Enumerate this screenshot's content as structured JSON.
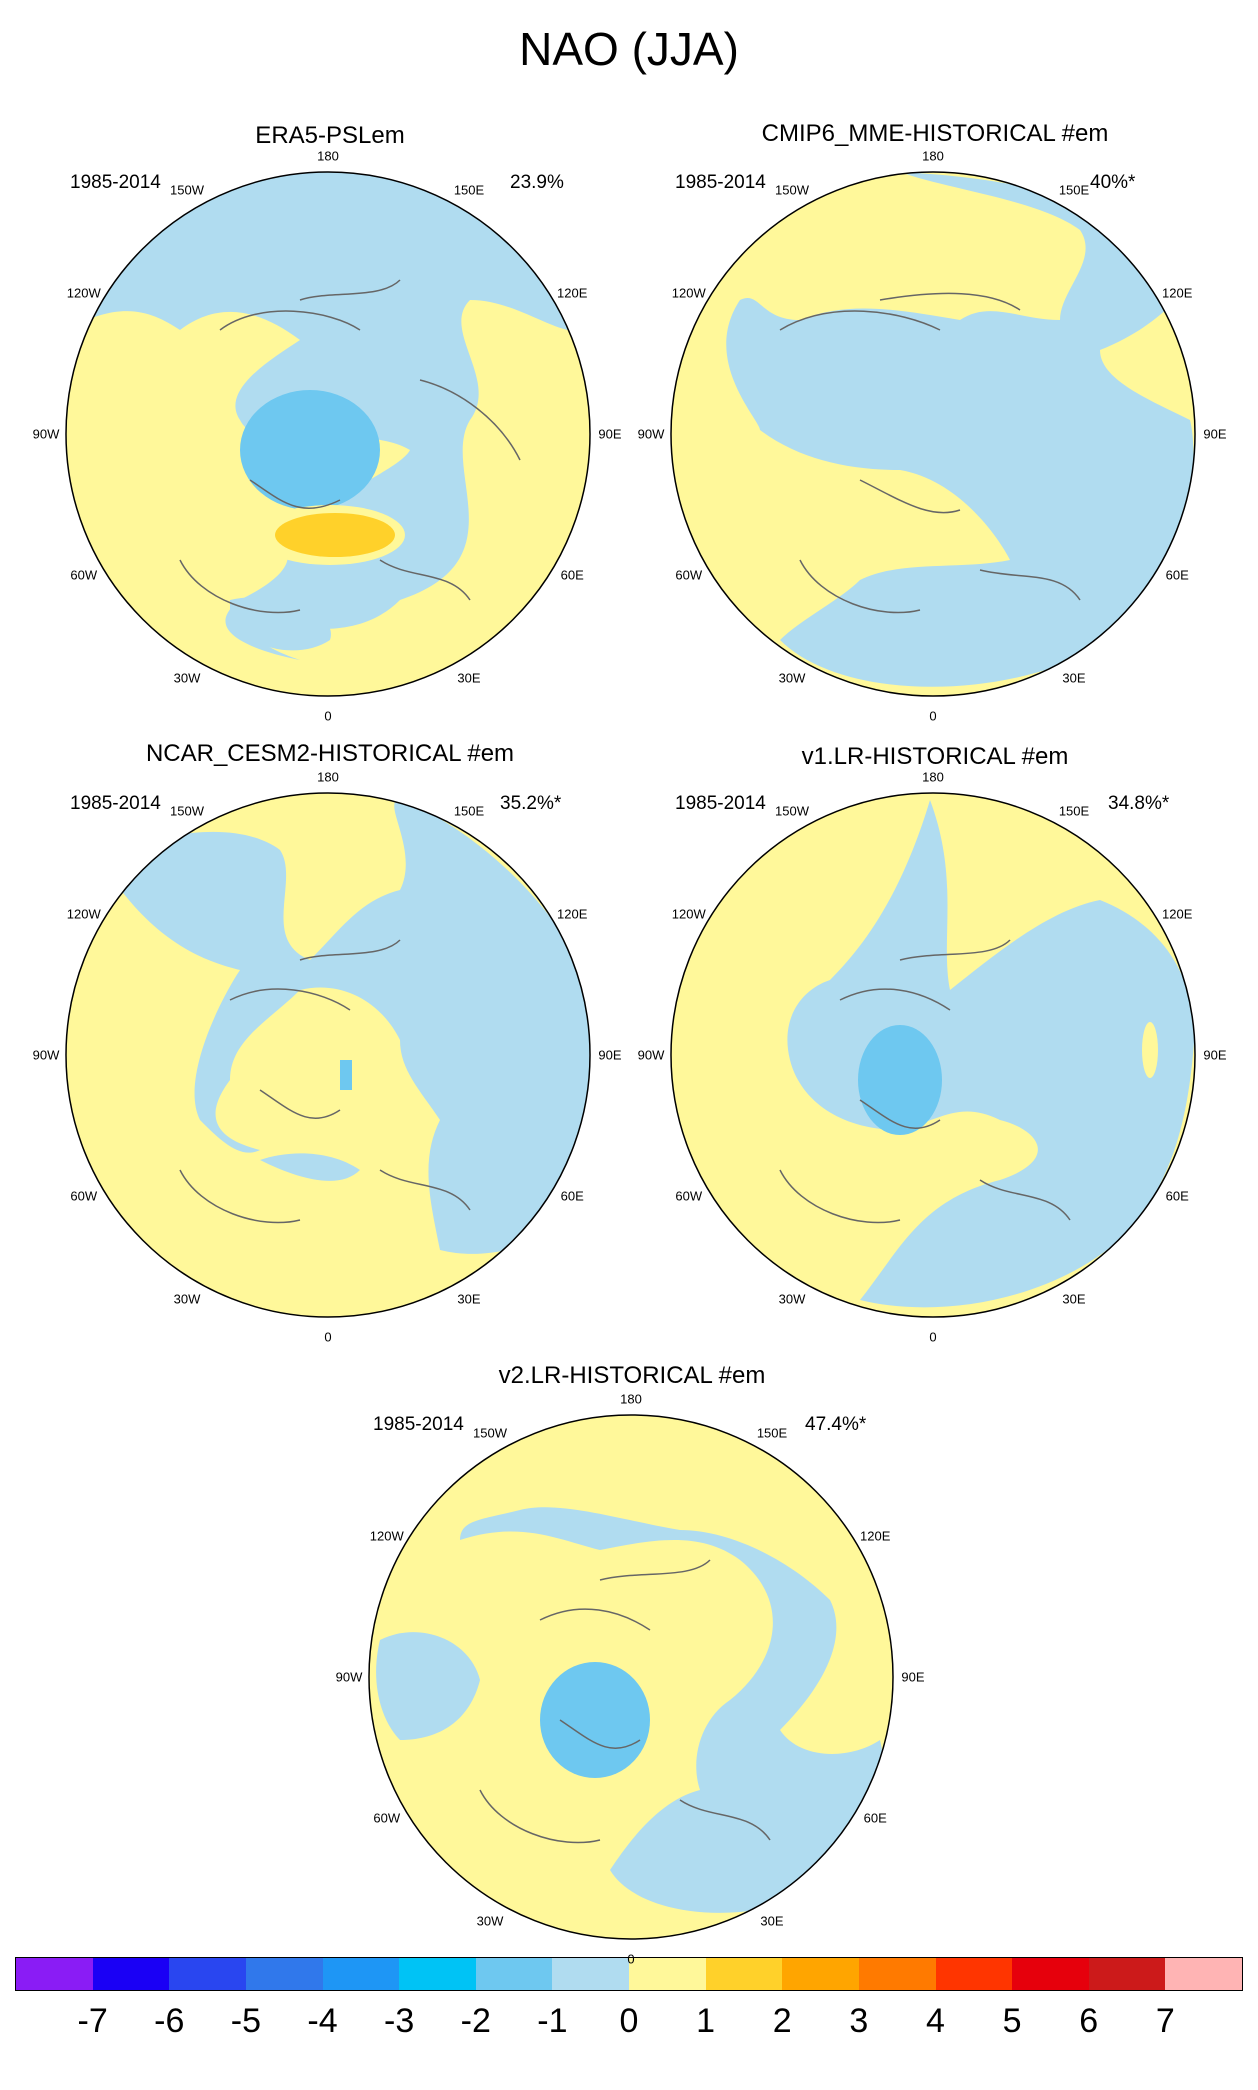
{
  "title": "NAO (JJA)",
  "colors": {
    "neg7": "#8a1cf5",
    "neg6": "#1a00f5",
    "neg5": "#2946f0",
    "neg4": "#3078eb",
    "neg3": "#1e96f5",
    "neg2": "#00c3f5",
    "neg1": "#6ec8f0",
    "neg0": "#b0dcf0",
    "pos0": "#fff89a",
    "pos1": "#ffd12a",
    "pos2": "#ffa500",
    "pos3": "#ff7a00",
    "pos4": "#ff3500",
    "pos5": "#e6000c",
    "pos6": "#cc1a1a",
    "pos7": "#ffb4b4"
  },
  "colorbar": {
    "labels": [
      "-7",
      "-6",
      "-5",
      "-4",
      "-3",
      "-2",
      "-1",
      "0",
      "1",
      "2",
      "3",
      "4",
      "5",
      "6",
      "7"
    ]
  },
  "longitude_labels": [
    "180",
    "150E",
    "120E",
    "90E",
    "60E",
    "30E",
    "0",
    "30W",
    "60W",
    "90W",
    "120W",
    "150W"
  ],
  "panels": [
    {
      "title": "ERA5-PSLem",
      "period": "1985-2014",
      "variance": "23.9%"
    },
    {
      "title": "CMIP6_MME-HISTORICAL  #em",
      "period": "1985-2014",
      "variance": "40%*"
    },
    {
      "title": "NCAR_CESM2-HISTORICAL  #em",
      "period": "1985-2014",
      "variance": "35.2%*"
    },
    {
      "title": "v1.LR-HISTORICAL  #em",
      "period": "1985-2014",
      "variance": "34.8%*"
    },
    {
      "title": "v2.LR-HISTORICAL  #em",
      "period": "1985-2014",
      "variance": "47.4%*"
    }
  ]
}
